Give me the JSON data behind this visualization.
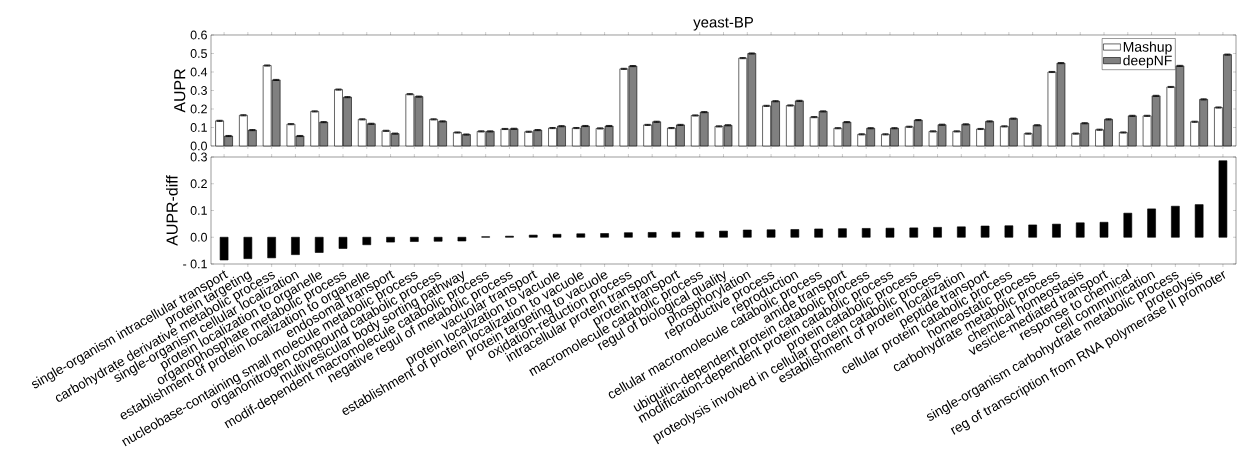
{
  "chart_data": [
    {
      "type": "bar",
      "title": "yeast-BP",
      "ylabel": "AUPR",
      "tick_labels": "y",
      "legend": "top right",
      "series": [
        {
          "name": "Mashup",
          "color": "#ffffff",
          "values": [
            0.136,
            0.166,
            0.435,
            0.118,
            0.187,
            0.305,
            0.144,
            0.082,
            0.28,
            0.144,
            0.073,
            0.079,
            0.092,
            0.077,
            0.097,
            0.097,
            0.095,
            0.417,
            0.114,
            0.097,
            0.165,
            0.106,
            0.475,
            0.217,
            0.219,
            0.156,
            0.096,
            0.063,
            0.063,
            0.104,
            0.079,
            0.079,
            0.092,
            0.106,
            0.067,
            0.4,
            0.067,
            0.088,
            0.073,
            0.163,
            0.319,
            0.131,
            0.208
          ],
          "errors": [
            0.003,
            0.003,
            0.003,
            0.003,
            0.003,
            0.003,
            0.003,
            0.003,
            0.003,
            0.003,
            0.003,
            0.003,
            0.003,
            0.003,
            0.003,
            0.003,
            0.003,
            0.003,
            0.003,
            0.003,
            0.003,
            0.003,
            0.003,
            0.003,
            0.003,
            0.003,
            0.003,
            0.003,
            0.003,
            0.003,
            0.003,
            0.003,
            0.003,
            0.003,
            0.003,
            0.003,
            0.003,
            0.003,
            0.003,
            0.003,
            0.003,
            0.003,
            0.003
          ]
        },
        {
          "name": "deepNF",
          "color": "#808080",
          "values": [
            0.054,
            0.086,
            0.357,
            0.054,
            0.129,
            0.264,
            0.12,
            0.067,
            0.267,
            0.133,
            0.062,
            0.079,
            0.093,
            0.086,
            0.107,
            0.108,
            0.108,
            0.432,
            0.131,
            0.114,
            0.183,
            0.112,
            0.5,
            0.242,
            0.244,
            0.187,
            0.129,
            0.096,
            0.096,
            0.14,
            0.115,
            0.117,
            0.133,
            0.148,
            0.112,
            0.448,
            0.123,
            0.144,
            0.163,
            0.271,
            0.433,
            0.252,
            0.494
          ],
          "errors": [
            0.003,
            0.003,
            0.003,
            0.003,
            0.003,
            0.003,
            0.003,
            0.003,
            0.003,
            0.003,
            0.003,
            0.003,
            0.003,
            0.003,
            0.003,
            0.003,
            0.003,
            0.003,
            0.003,
            0.003,
            0.003,
            0.003,
            0.003,
            0.003,
            0.003,
            0.003,
            0.003,
            0.003,
            0.003,
            0.003,
            0.003,
            0.003,
            0.003,
            0.003,
            0.003,
            0.003,
            0.003,
            0.003,
            0.003,
            0.003,
            0.003,
            0.003,
            0.003
          ]
        }
      ],
      "ylim": [
        0,
        0.6
      ],
      "yticks": [
        {
          "value": 0,
          "label": "0.0"
        },
        {
          "value": 0.1,
          "label": "0.1"
        },
        {
          "value": 0.2,
          "label": "0.2"
        },
        {
          "value": 0.3,
          "label": "0.3"
        },
        {
          "value": 0.4,
          "label": "0.4"
        },
        {
          "value": 0.5,
          "label": "0.5"
        },
        {
          "value": 0.6,
          "label": "0.6"
        }
      ]
    },
    {
      "type": "bar",
      "ylabel": "AUPR-diff",
      "color": "#000000",
      "categories": [
        "single-organism intracellular transport",
        "protein targeting",
        "carbohydrate derivative metabolic process",
        "single-organism cellular localization",
        "protein localization to organelle",
        "organophosphate metabolic process",
        "establishment of protein localization to organelle",
        "endosomal transport",
        "nucleobase-containing small molecule metabolic process",
        "organonitrogen compound catabolic process",
        "multivesicular body sorting pathway",
        "modif-dependent macromolecule catabolic process",
        "negative regul of metabolic process",
        "vacuolar transport",
        "protein localization to vacuole",
        "establishment of protein localization to vacuole",
        "protein targeting to vacuole",
        "oxidation-reduction process",
        "intracellular protein transport",
        "protein transport",
        "macromolecule catabolic process",
        "regul of biological quality",
        "phosphorylation",
        "reproductive process",
        "reproduction",
        "cellular macromolecule catabolic process",
        "amide transport",
        "ubiquitin-dependent protein catabolic process",
        "modification-dependent protein catabolic process",
        "protein catabolic process",
        "proteolysis involved in cellular protein catabolic process",
        "establishment of protein localization",
        "peptide transport",
        "cellular protein catabolic process",
        "homeostatic process",
        "carbohydrate metabolic process",
        "chemical homeostasis",
        "vesicle-mediated transport",
        "response to chemical",
        "cell communication",
        "single-organism carbohydrate metabolic process",
        "proteolysis",
        "reg of transcription from RNA polymerase II promoter"
      ],
      "values": [
        -0.085,
        -0.08,
        -0.077,
        -0.065,
        -0.057,
        -0.042,
        -0.028,
        -0.018,
        -0.016,
        -0.015,
        -0.014,
        0.002,
        0.004,
        0.008,
        0.011,
        0.013,
        0.014,
        0.017,
        0.018,
        0.019,
        0.02,
        0.023,
        0.027,
        0.028,
        0.029,
        0.031,
        0.032,
        0.033,
        0.034,
        0.035,
        0.037,
        0.039,
        0.042,
        0.043,
        0.046,
        0.049,
        0.054,
        0.056,
        0.09,
        0.106,
        0.116,
        0.122,
        0.286
      ],
      "ylim": [
        -0.1,
        0.3
      ],
      "yticks": [
        {
          "value": -0.1,
          "label": "- 0.1"
        },
        {
          "value": 0,
          "label": "0.0"
        },
        {
          "value": 0.1,
          "label": "0.1"
        },
        {
          "value": 0.2,
          "label": "0.2"
        },
        {
          "value": 0.3,
          "label": "0.3"
        }
      ]
    }
  ]
}
